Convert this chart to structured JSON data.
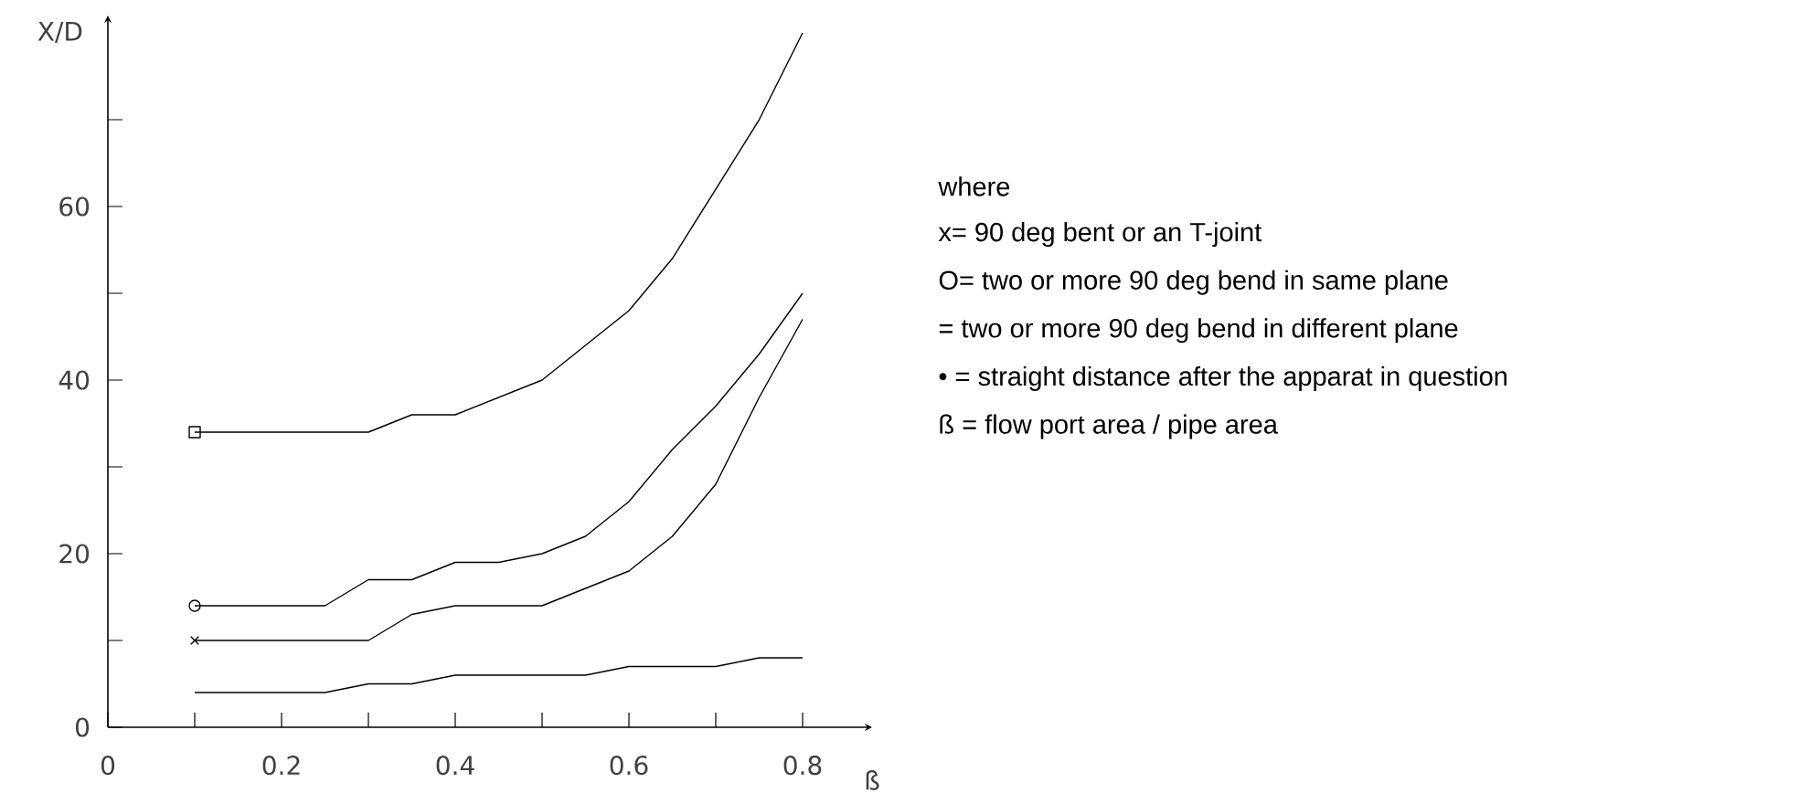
{
  "chart_data": {
    "type": "line",
    "xlabel": "ß",
    "ylabel": "X/D",
    "x": [
      0.1,
      0.15,
      0.2,
      0.25,
      0.3,
      0.35,
      0.4,
      0.45,
      0.5,
      0.55,
      0.6,
      0.65,
      0.7,
      0.75,
      0.8
    ],
    "series": [
      {
        "color": "#000000",
        "marker": "none",
        "values": [
          34,
          34,
          34,
          34,
          34,
          36,
          36,
          38,
          40,
          44,
          48,
          54,
          62,
          70,
          80
        ]
      },
      {
        "color": "#000000",
        "marker": "none",
        "values": [
          14,
          14,
          14,
          14,
          17,
          17,
          19,
          19,
          20,
          22,
          26,
          32,
          37,
          43,
          50
        ]
      },
      {
        "color": "#000000",
        "marker": "none",
        "values": [
          10,
          10,
          10,
          10,
          10,
          13,
          14,
          14,
          14,
          16,
          18,
          22,
          28,
          38,
          47
        ]
      },
      {
        "color": "#000000",
        "marker": "none",
        "values": [
          4,
          4,
          4,
          4,
          5,
          5,
          6,
          6,
          6,
          6,
          7,
          7,
          7,
          8,
          8
        ]
      },
      {
        "type": "scatter",
        "color": "#000000",
        "marker": "square",
        "values": [
          34,
          null,
          null,
          null,
          null,
          null,
          null,
          null,
          null,
          null,
          null,
          null,
          null,
          null,
          null
        ]
      },
      {
        "type": "scatter",
        "color": "#000000",
        "marker": "circle",
        "values": [
          14,
          null,
          null,
          null,
          null,
          null,
          null,
          null,
          null,
          null,
          null,
          null,
          null,
          null,
          null
        ]
      },
      {
        "type": "scatter",
        "color": "#000000",
        "marker": "cross",
        "values": [
          10,
          null,
          null,
          null,
          null,
          null,
          null,
          null,
          null,
          null,
          null,
          null,
          null,
          null,
          null
        ]
      }
    ],
    "xlim": [
      0,
      0.88
    ],
    "ylim": [
      0,
      82
    ],
    "xticks": [
      0,
      {
        "value": 0.1,
        "label": null
      },
      0.2,
      {
        "value": 0.3,
        "label": null
      },
      0.4,
      {
        "value": 0.5,
        "label": null
      },
      0.6,
      {
        "value": 0.7,
        "label": null
      },
      0.8
    ],
    "yticks": [
      0,
      {
        "value": 10,
        "label": null
      },
      20,
      {
        "value": 30,
        "label": null
      },
      40,
      {
        "value": 50,
        "label": null
      },
      60,
      {
        "value": 70,
        "label": null
      }
    ],
    "line_style": "solid",
    "annotations": [
      "where",
      "x=  90 deg bent or an T-joint",
      "O= two or more 90 deg bend in same plane",
      "= two or more 90 deg bend in different plane",
      "• = straight distance after the apparat in question",
      "ß = flow port area / pipe area"
    ]
  }
}
